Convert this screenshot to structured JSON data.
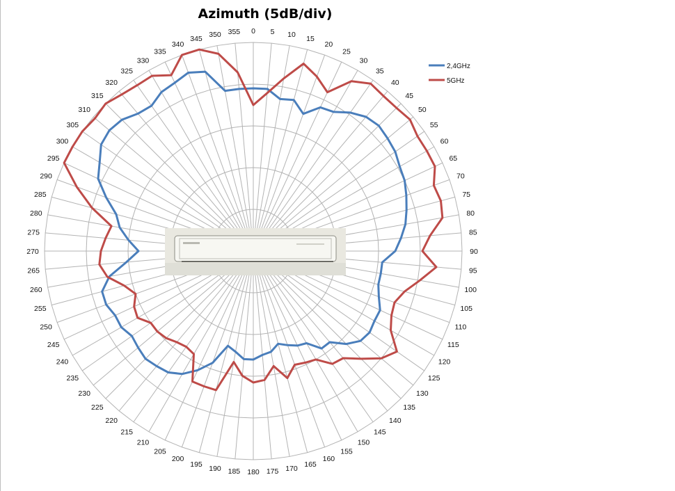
{
  "chart_data": {
    "type": "radar",
    "title": "Azimuth (5dB/div)",
    "angle_unit": "degrees",
    "angle_step": 5,
    "radial_divisions": 5,
    "radial_labels_shown": false,
    "angles": [
      0,
      5,
      10,
      15,
      20,
      25,
      30,
      35,
      40,
      45,
      50,
      55,
      60,
      65,
      70,
      75,
      80,
      85,
      90,
      95,
      100,
      105,
      110,
      115,
      120,
      125,
      130,
      135,
      140,
      145,
      150,
      155,
      160,
      165,
      170,
      175,
      180,
      185,
      190,
      195,
      200,
      205,
      210,
      215,
      220,
      225,
      230,
      235,
      240,
      245,
      250,
      255,
      260,
      265,
      270,
      275,
      280,
      285,
      290,
      295,
      300,
      305,
      310,
      315,
      320,
      325,
      330,
      335,
      340,
      345,
      350,
      355
    ],
    "series": [
      {
        "name": "2,4GHz",
        "color": "#4A7EBB",
        "values": [
          0.78,
          0.78,
          0.74,
          0.75,
          0.7,
          0.76,
          0.77,
          0.81,
          0.84,
          0.85,
          0.84,
          0.83,
          0.81,
          0.8,
          0.78,
          0.76,
          0.74,
          0.71,
          0.68,
          0.62,
          0.62,
          0.62,
          0.64,
          0.67,
          0.67,
          0.68,
          0.67,
          0.63,
          0.57,
          0.57,
          0.51,
          0.5,
          0.48,
          0.46,
          0.49,
          0.5,
          0.52,
          0.52,
          0.49,
          0.47,
          0.57,
          0.63,
          0.68,
          0.71,
          0.72,
          0.73,
          0.72,
          0.71,
          0.73,
          0.73,
          0.75,
          0.75,
          0.7,
          0.61,
          0.55,
          0.6,
          0.65,
          0.68,
          0.75,
          0.82,
          0.85,
          0.89,
          0.9,
          0.89,
          0.86,
          0.85,
          0.88,
          0.89,
          0.91,
          0.89,
          0.78,
          0.78
        ]
      },
      {
        "name": "5GHz",
        "color": "#BE4B48",
        "values": [
          0.7,
          0.76,
          0.84,
          0.93,
          0.89,
          0.84,
          0.94,
          0.98,
          0.97,
          0.97,
          0.98,
          0.96,
          0.96,
          0.96,
          0.92,
          0.93,
          0.92,
          0.85,
          0.81,
          0.88,
          0.81,
          0.75,
          0.72,
          0.73,
          0.76,
          0.84,
          0.8,
          0.73,
          0.67,
          0.66,
          0.6,
          0.59,
          0.58,
          0.63,
          0.56,
          0.62,
          0.63,
          0.6,
          0.54,
          0.69,
          0.69,
          0.69,
          0.57,
          0.56,
          0.57,
          0.59,
          0.6,
          0.6,
          0.64,
          0.63,
          0.6,
          0.64,
          0.71,
          0.74,
          0.73,
          0.71,
          0.69,
          0.8,
          0.9,
          1.0,
          1.0,
          1.0,
          0.99,
          1.0,
          0.98,
          0.97,
          0.97,
          0.93,
          1.0,
          1.0,
          0.96,
          0.86
        ]
      }
    ],
    "legend": {
      "position": "right",
      "entries": [
        "2,4GHz",
        "5GHz"
      ]
    },
    "grid": true,
    "center_image": "antenna-device-photo"
  }
}
